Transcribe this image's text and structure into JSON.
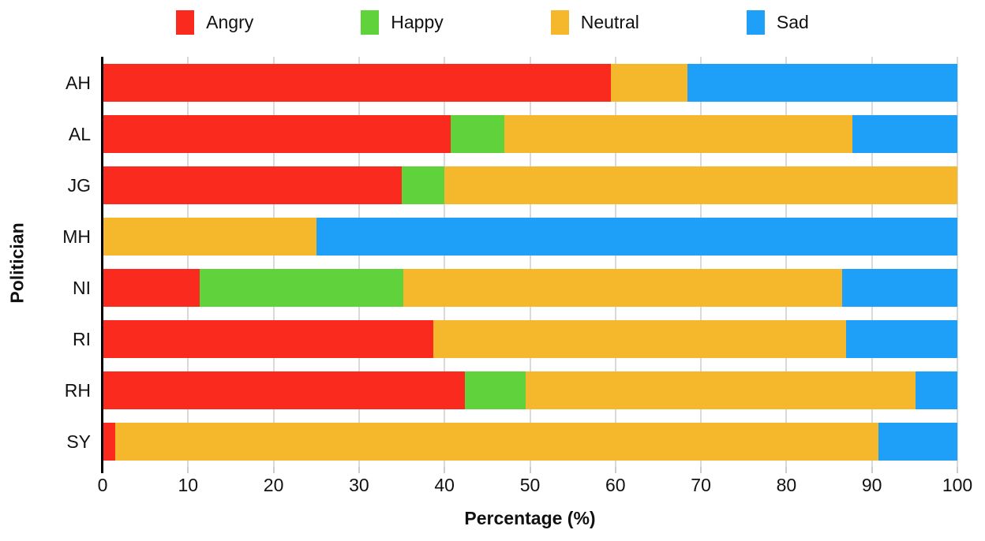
{
  "colors": {
    "angry": "#fa2b1e",
    "happy": "#60d33c",
    "neutral": "#f5b82d",
    "sad": "#1ea0f8",
    "grid": "#d9d9d9",
    "axis": "#000000",
    "text": "#111111"
  },
  "legend": {
    "position": "top",
    "items": [
      {
        "label": "Angry",
        "color": "#fa2b1e"
      },
      {
        "label": "Happy",
        "color": "#60d33c"
      },
      {
        "label": "Neutral",
        "color": "#f5b82d"
      },
      {
        "label": "Sad",
        "color": "#1ea0f8"
      }
    ]
  },
  "chart_data": {
    "type": "bar",
    "orientation": "horizontal",
    "stacked": true,
    "title": "",
    "xlabel": "Percentage (%)",
    "ylabel": "Politician",
    "xlim": [
      0,
      100
    ],
    "xtick_labels": [
      "0",
      "10",
      "20",
      "30",
      "40",
      "50",
      "60",
      "70",
      "80",
      "90",
      "100"
    ],
    "grid": "vertical",
    "legend_position": "top",
    "categories": [
      "AH",
      "AL",
      "JG",
      "MH",
      "NI",
      "RI",
      "RH",
      "SY"
    ],
    "series": [
      {
        "name": "Angry",
        "color": "#fa2b1e",
        "values": [
          59.5,
          40.7,
          35.0,
          0,
          11.4,
          38.7,
          42.4,
          1.5
        ]
      },
      {
        "name": "Happy",
        "color": "#60d33c",
        "values": [
          0,
          6.3,
          5.0,
          0,
          23.8,
          0,
          7.1,
          0
        ]
      },
      {
        "name": "Neutral",
        "color": "#f5b82d",
        "values": [
          8.9,
          40.7,
          60.0,
          25.0,
          51.3,
          48.3,
          45.6,
          89.3
        ]
      },
      {
        "name": "Sad",
        "color": "#1ea0f8",
        "values": [
          31.6,
          12.3,
          0,
          75.0,
          13.5,
          13.0,
          4.9,
          9.2
        ]
      }
    ]
  }
}
